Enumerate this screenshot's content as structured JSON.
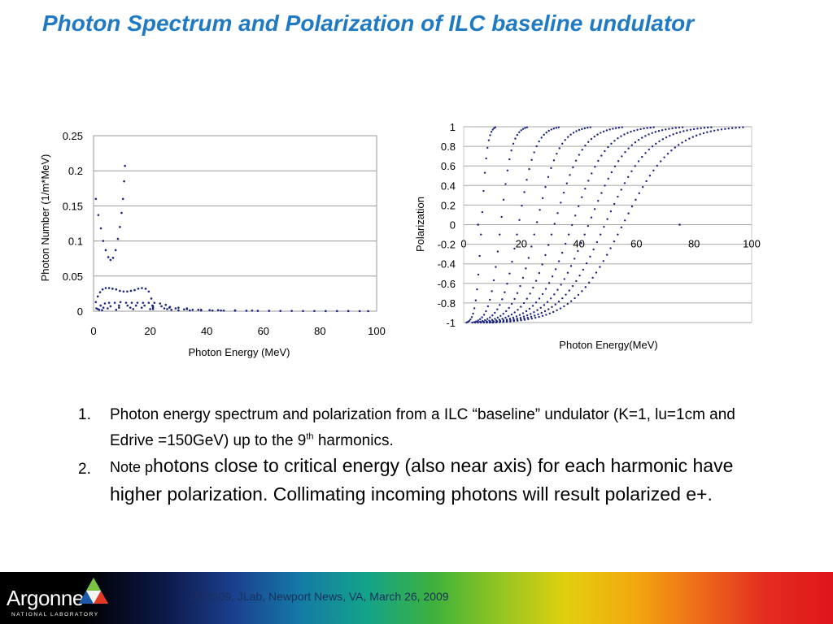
{
  "slide": {
    "title": "Photon Spectrum  and Polarization of ILC baseline undulator"
  },
  "chart_data": [
    {
      "type": "scatter",
      "title": "",
      "xlabel": "Photon Energy (MeV)",
      "ylabel": "Photon Number (1/m*MeV)",
      "xlim": [
        0,
        100
      ],
      "ylim": [
        0,
        0.25
      ],
      "xticks": [
        "0",
        "20",
        "40",
        "60",
        "80",
        "100"
      ],
      "yticks": [
        "0",
        "0.05",
        "0.1",
        "0.15",
        "0.2",
        "0.25"
      ],
      "grid": "horizontal",
      "marker_color": "#1a237e",
      "series": [
        {
          "points": [
            [
              0.8,
              0.16
            ],
            [
              1.7,
              0.137
            ],
            [
              2.6,
              0.118
            ],
            [
              3.4,
              0.1
            ],
            [
              4.3,
              0.087
            ],
            [
              5.2,
              0.077
            ],
            [
              6.0,
              0.073
            ],
            [
              6.9,
              0.076
            ],
            [
              7.8,
              0.087
            ],
            [
              8.6,
              0.103
            ],
            [
              9.3,
              0.12
            ],
            [
              9.9,
              0.14
            ],
            [
              10.4,
              0.16
            ],
            [
              10.8,
              0.185
            ],
            [
              11.1,
              0.207
            ]
          ]
        },
        {
          "points": [
            [
              0.8,
              0.013
            ],
            [
              1.5,
              0.021
            ],
            [
              2.3,
              0.027
            ],
            [
              3.2,
              0.031
            ],
            [
              4.3,
              0.033
            ],
            [
              5.5,
              0.033
            ],
            [
              6.7,
              0.032
            ],
            [
              8.0,
              0.031
            ],
            [
              9.3,
              0.029
            ],
            [
              10.6,
              0.028
            ],
            [
              11.9,
              0.028
            ],
            [
              13.2,
              0.029
            ],
            [
              14.5,
              0.03
            ],
            [
              15.8,
              0.032
            ],
            [
              17.1,
              0.033
            ],
            [
              18.4,
              0.032
            ],
            [
              19.5,
              0.028
            ],
            [
              20.4,
              0.018
            ],
            [
              20.8,
              0.008
            ],
            [
              21.0,
              0.003
            ]
          ]
        },
        {
          "points": [
            [
              1.0,
              0.004
            ],
            [
              2.5,
              0.008
            ],
            [
              4.0,
              0.011
            ],
            [
              5.5,
              0.012
            ],
            [
              7.5,
              0.012
            ],
            [
              9.5,
              0.013
            ],
            [
              11.5,
              0.012
            ],
            [
              13.5,
              0.012
            ],
            [
              15.5,
              0.012
            ],
            [
              17.5,
              0.012
            ],
            [
              19.5,
              0.012
            ],
            [
              21.5,
              0.012
            ],
            [
              23.5,
              0.011
            ],
            [
              25.5,
              0.009
            ],
            [
              26.8,
              0.005
            ],
            [
              27.5,
              0.002
            ]
          ]
        },
        {
          "points": [
            [
              1.5,
              0.003
            ],
            [
              3.5,
              0.005
            ],
            [
              6.0,
              0.007
            ],
            [
              9.0,
              0.008
            ],
            [
              12.0,
              0.008
            ],
            [
              15.0,
              0.008
            ],
            [
              18.0,
              0.008
            ],
            [
              21.0,
              0.007
            ],
            [
              24.0,
              0.007
            ],
            [
              27.0,
              0.006
            ],
            [
              30.0,
              0.005
            ],
            [
              33.0,
              0.004
            ],
            [
              35.0,
              0.002
            ]
          ]
        },
        {
          "points": [
            [
              2.0,
              0.002
            ],
            [
              5.0,
              0.004
            ],
            [
              9.0,
              0.005
            ],
            [
              13.0,
              0.005
            ],
            [
              17.0,
              0.005
            ],
            [
              21.0,
              0.005
            ],
            [
              25.0,
              0.004
            ],
            [
              29.0,
              0.004
            ],
            [
              33.0,
              0.003
            ],
            [
              37.0,
              0.002
            ],
            [
              41.0,
              0.0015
            ],
            [
              45.0,
              0.001
            ]
          ]
        },
        {
          "points": [
            [
              3.0,
              0.0015
            ],
            [
              8.0,
              0.002
            ],
            [
              14.0,
              0.003
            ],
            [
              20.0,
              0.003
            ],
            [
              26.0,
              0.003
            ],
            [
              32.0,
              0.0025
            ],
            [
              38.0,
              0.002
            ],
            [
              44.0,
              0.0015
            ],
            [
              50.0,
              0.0012
            ],
            [
              56.0,
              0.0008
            ]
          ]
        },
        {
          "points": [
            [
              30.0,
              0.0012
            ],
            [
              34.0,
              0.0011
            ],
            [
              38.0,
              0.001
            ],
            [
              42.0,
              0.0009
            ],
            [
              46.0,
              0.0008
            ],
            [
              50.0,
              0.0007
            ],
            [
              54.0,
              0.0006
            ],
            [
              58.0,
              0.0005
            ],
            [
              62.0,
              0.0005
            ],
            [
              66.0,
              0.0004
            ],
            [
              70.0,
              0.0004
            ],
            [
              74.0,
              0.0003
            ],
            [
              78.0,
              0.0003
            ],
            [
              82.0,
              0.0002
            ],
            [
              86.0,
              0.0002
            ],
            [
              90.0,
              0.0002
            ],
            [
              94.0,
              0.0001
            ],
            [
              97.0,
              0.0001
            ]
          ]
        }
      ]
    },
    {
      "type": "scatter",
      "title": "",
      "xlabel": "Photon Energy(MeV)",
      "ylabel": "Polarization",
      "xlim": [
        0,
        100
      ],
      "ylim": [
        -1,
        1
      ],
      "xticks": [
        "0",
        "20",
        "40",
        "60",
        "80",
        "100"
      ],
      "yticks": [
        "-1",
        "-0.8",
        "-0.6",
        "-0.4",
        "-0.2",
        "0",
        "0.2",
        "0.4",
        "0.6",
        "0.8",
        "1"
      ],
      "grid": "horizontal",
      "marker_color": "#1a237e",
      "harmonics": [
        {
          "start": 1,
          "end": 11
        },
        {
          "start": 3,
          "end": 22
        },
        {
          "start": 4,
          "end": 33
        },
        {
          "start": 5,
          "end": 44
        },
        {
          "start": 6,
          "end": 55
        },
        {
          "start": 7,
          "end": 66
        },
        {
          "start": 8,
          "end": 76
        },
        {
          "start": 9,
          "end": 86
        },
        {
          "start": 10,
          "end": 97
        }
      ],
      "isolated_points": [
        [
          5,
          0
        ],
        [
          75,
          0
        ]
      ]
    }
  ],
  "notes": [
    {
      "number": "1.",
      "text": "Photon energy spectrum and polarization from a ILC “baseline” undulator (K=1, lu=1cm and Edrive =150GeV) up to the 9",
      "sup": "th",
      "tail": " harmonics."
    },
    {
      "number": "2.",
      "lead": "Note p",
      "text": "hotons close to critical energy (also near axis) for each harmonic have higher polarization. Collimating incoming photons will result polarized e+."
    }
  ],
  "footer": {
    "logo_text": "Argonne",
    "logo_subtext": "NATIONAL LABORATORY",
    "caption": "JPOS09, JLab, Newport News, VA,  March 26, 2009"
  }
}
